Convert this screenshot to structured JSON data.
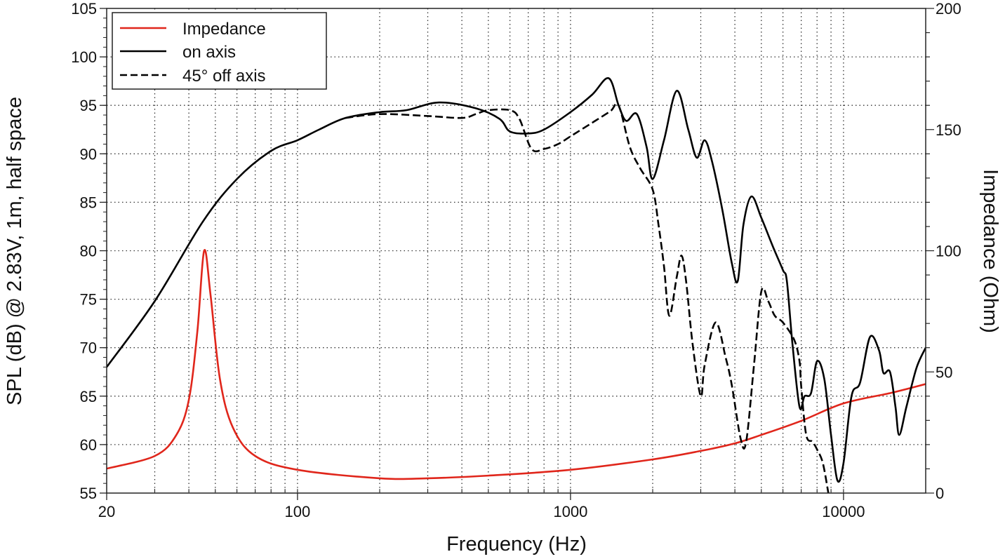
{
  "chart_data": {
    "type": "line",
    "xlabel": "Frequency (Hz)",
    "ylabel": "SPL (dB) @ 2.83V, 1m, half space",
    "y2label": "Impedance (Ohm)",
    "xscale": "log",
    "xlim": [
      20,
      20000
    ],
    "ylim": [
      55,
      105
    ],
    "y2lim": [
      0,
      200
    ],
    "grid": true,
    "legend_position": "top-left",
    "x_tick_labels": [
      "20",
      "100",
      "1000",
      "10000"
    ],
    "x_tick_values": [
      20,
      100,
      1000,
      10000
    ],
    "y_tick_values": [
      55,
      60,
      65,
      70,
      75,
      80,
      85,
      90,
      95,
      100,
      105
    ],
    "y2_tick_values": [
      0,
      50,
      100,
      150,
      200
    ],
    "series": [
      {
        "name": "Impedance",
        "axis": "right",
        "color": "#e0261b",
        "style": "solid",
        "points": [
          [
            20,
            10.1
          ],
          [
            30,
            15.3
          ],
          [
            36,
            24
          ],
          [
            40,
            38.5
          ],
          [
            43,
            67
          ],
          [
            45.5,
            100
          ],
          [
            48,
            82
          ],
          [
            52,
            47
          ],
          [
            58,
            27
          ],
          [
            70,
            15.3
          ],
          [
            100,
            9.6
          ],
          [
            200,
            6.1
          ],
          [
            300,
            6.1
          ],
          [
            500,
            7.2
          ],
          [
            1000,
            9.6
          ],
          [
            2000,
            13.9
          ],
          [
            3000,
            17.4
          ],
          [
            4000,
            20.5
          ],
          [
            5000,
            24
          ],
          [
            7000,
            29.8
          ],
          [
            10000,
            37
          ],
          [
            15000,
            41.4
          ],
          [
            20000,
            45
          ]
        ]
      },
      {
        "name": "on axis",
        "axis": "left",
        "color": "#000000",
        "style": "solid",
        "points": [
          [
            20,
            68
          ],
          [
            30,
            74.8
          ],
          [
            45,
            83
          ],
          [
            60,
            87.4
          ],
          [
            80,
            90.3
          ],
          [
            100,
            91.4
          ],
          [
            120,
            92.5
          ],
          [
            150,
            93.7
          ],
          [
            200,
            94.3
          ],
          [
            250,
            94.5
          ],
          [
            330,
            95.3
          ],
          [
            450,
            94.7
          ],
          [
            550,
            93.6
          ],
          [
            600,
            92.3
          ],
          [
            700,
            92.1
          ],
          [
            800,
            92.5
          ],
          [
            1000,
            94.3
          ],
          [
            1200,
            96.1
          ],
          [
            1380,
            97.8
          ],
          [
            1500,
            95.0
          ],
          [
            1600,
            93.4
          ],
          [
            1750,
            94.1
          ],
          [
            1900,
            90.7
          ],
          [
            2000,
            87.4
          ],
          [
            2200,
            91.4
          ],
          [
            2450,
            96.5
          ],
          [
            2700,
            92.5
          ],
          [
            2900,
            89.6
          ],
          [
            3100,
            91.4
          ],
          [
            3300,
            89.2
          ],
          [
            3600,
            84.2
          ],
          [
            3900,
            78.7
          ],
          [
            4100,
            76.9
          ],
          [
            4300,
            82.7
          ],
          [
            4600,
            85.6
          ],
          [
            5000,
            83.4
          ],
          [
            5500,
            80.5
          ],
          [
            6000,
            78.0
          ],
          [
            6200,
            76.9
          ],
          [
            6500,
            70.4
          ],
          [
            6900,
            63.9
          ],
          [
            7200,
            65
          ],
          [
            7600,
            65.3
          ],
          [
            8000,
            68.6
          ],
          [
            8500,
            66.8
          ],
          [
            9000,
            61.0
          ],
          [
            9500,
            56.3
          ],
          [
            10000,
            58.1
          ],
          [
            10700,
            65
          ],
          [
            11500,
            66.4
          ],
          [
            12500,
            71.1
          ],
          [
            13500,
            69.7
          ],
          [
            14000,
            67.4
          ],
          [
            14800,
            67.5
          ],
          [
            15500,
            63.9
          ],
          [
            16000,
            61.0
          ],
          [
            17000,
            63.9
          ],
          [
            18500,
            67.9
          ],
          [
            20000,
            70
          ]
        ]
      },
      {
        "name": "45° off axis",
        "axis": "left",
        "color": "#000000",
        "style": "dashed",
        "points": [
          [
            150,
            93.7
          ],
          [
            200,
            94.1
          ],
          [
            300,
            93.9
          ],
          [
            400,
            93.7
          ],
          [
            450,
            94.1
          ],
          [
            500,
            94.5
          ],
          [
            600,
            94.5
          ],
          [
            650,
            93.6
          ],
          [
            720,
            90.5
          ],
          [
            800,
            90.5
          ],
          [
            900,
            91
          ],
          [
            1000,
            91.8
          ],
          [
            1200,
            93.2
          ],
          [
            1400,
            94.4
          ],
          [
            1500,
            95.0
          ],
          [
            1650,
            90.7
          ],
          [
            1800,
            88.5
          ],
          [
            2000,
            86.3
          ],
          [
            2100,
            82.7
          ],
          [
            2200,
            78.4
          ],
          [
            2300,
            73.3
          ],
          [
            2450,
            77.3
          ],
          [
            2550,
            79.5
          ],
          [
            2650,
            76.9
          ],
          [
            2800,
            70.4
          ],
          [
            3000,
            65
          ],
          [
            3100,
            68.2
          ],
          [
            3400,
            72.6
          ],
          [
            3700,
            69
          ],
          [
            3900,
            66.1
          ],
          [
            4200,
            60.6
          ],
          [
            4400,
            60.3
          ],
          [
            4700,
            68.2
          ],
          [
            5000,
            75.8
          ],
          [
            5300,
            74.8
          ],
          [
            5600,
            73.3
          ],
          [
            6000,
            72.6
          ],
          [
            6600,
            70.8
          ],
          [
            6900,
            68.6
          ],
          [
            7000,
            66
          ],
          [
            7300,
            61
          ],
          [
            7700,
            60.3
          ],
          [
            8000,
            59.5
          ],
          [
            8400,
            58.1
          ],
          [
            8800,
            55
          ]
        ]
      }
    ]
  }
}
